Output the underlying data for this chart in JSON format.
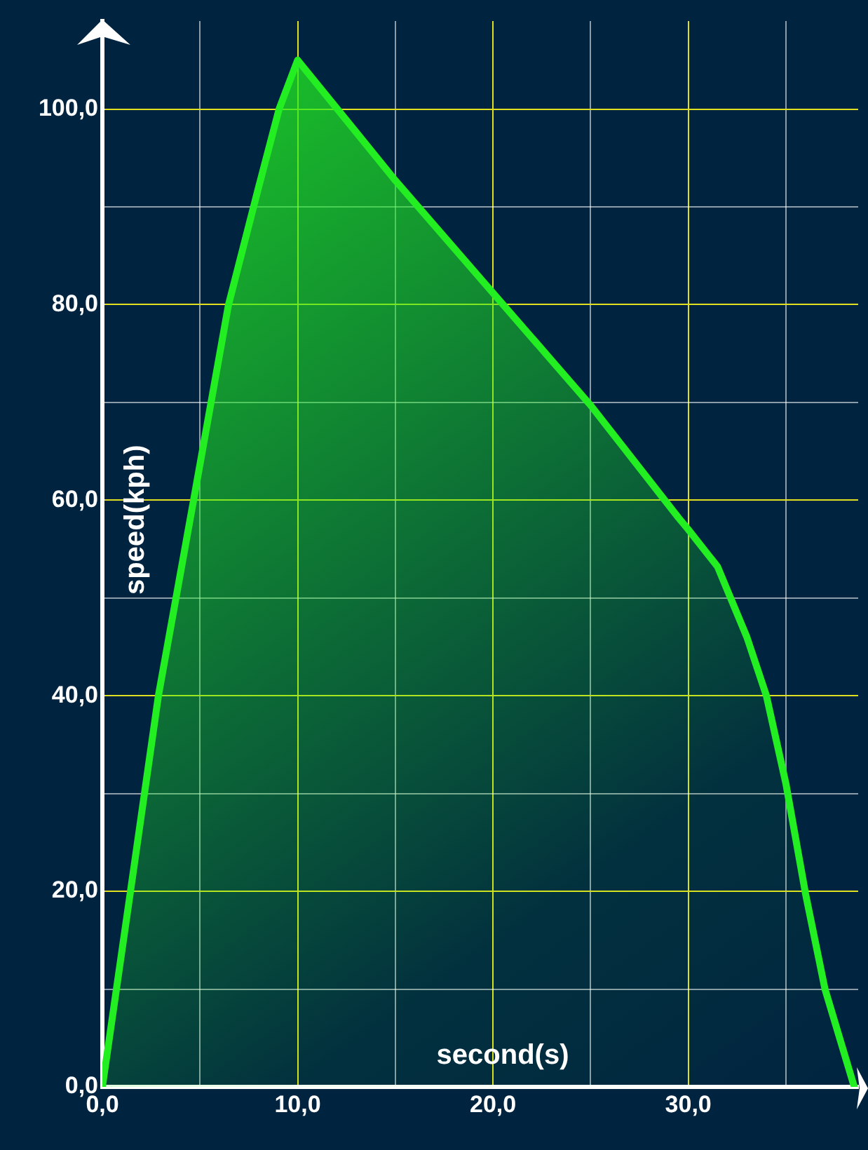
{
  "chart_data": {
    "type": "area",
    "xlabel": "second(s)",
    "ylabel": "speed(kph)",
    "x": [
      0,
      1.44,
      2.87,
      4.67,
      6.46,
      8,
      9.05,
      10,
      15,
      20,
      25,
      29.5,
      30,
      31.5,
      33,
      34,
      35,
      36,
      37,
      38.5
    ],
    "series": [
      {
        "color": "#22ee22",
        "values": [
          0,
          20,
          40,
          60,
          80,
          92,
          100,
          105,
          92.7,
          81.2,
          69.7,
          58.2,
          57,
          53.2,
          46,
          40,
          31,
          19.8,
          10,
          0
        ]
      }
    ],
    "xlim": [
      0,
      38.7
    ],
    "ylim": [
      0,
      109
    ],
    "xticks": [
      {
        "value": 0,
        "label": "0,0"
      },
      {
        "value": 5,
        "label": null
      },
      {
        "value": 10,
        "label": "10,0"
      },
      {
        "value": 15,
        "label": null
      },
      {
        "value": 20,
        "label": "20,0"
      },
      {
        "value": 25,
        "label": null
      },
      {
        "value": 30,
        "label": "30,0"
      },
      {
        "value": 35,
        "label": null
      }
    ],
    "yticks": [
      {
        "value": 0,
        "label": "0,0"
      },
      {
        "value": 10,
        "label": null
      },
      {
        "value": 20,
        "label": "20,0"
      },
      {
        "value": 30,
        "label": null
      },
      {
        "value": 40,
        "label": "40,0"
      },
      {
        "value": 50,
        "label": null
      },
      {
        "value": 60,
        "label": "60,0"
      },
      {
        "value": 70,
        "label": null
      },
      {
        "value": 80,
        "label": "80,0"
      },
      {
        "value": 90,
        "label": null
      },
      {
        "value": 100,
        "label": "100,0"
      }
    ],
    "grid": true,
    "marker": "none",
    "line_style": "solid"
  }
}
